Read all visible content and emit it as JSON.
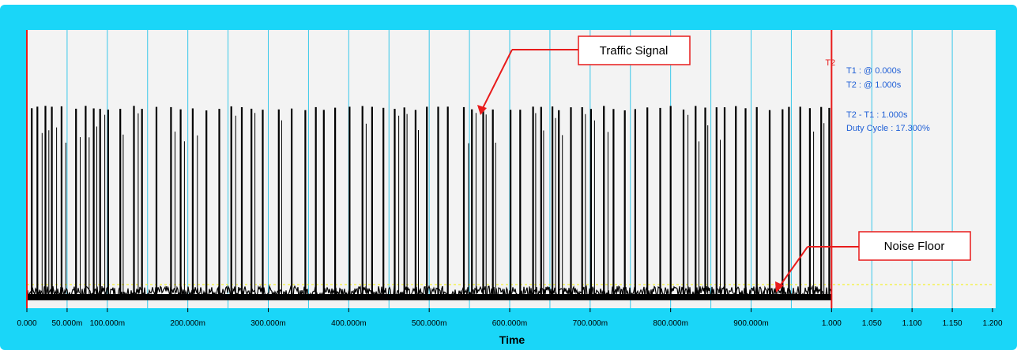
{
  "chart_data": {
    "type": "line",
    "xlabel": "Time",
    "ylabel": "",
    "x_unit": "s",
    "xlim": [
      0,
      1.2
    ],
    "x_ticks": [
      {
        "value": 0.0,
        "label": "0.000"
      },
      {
        "value": 0.05,
        "label": "50.000m"
      },
      {
        "value": 0.1,
        "label": "100.000m"
      },
      {
        "value": 0.2,
        "label": "200.000m"
      },
      {
        "value": 0.3,
        "label": "300.000m"
      },
      {
        "value": 0.4,
        "label": "400.000m"
      },
      {
        "value": 0.5,
        "label": "500.000m"
      },
      {
        "value": 0.6,
        "label": "600.000m"
      },
      {
        "value": 0.7,
        "label": "700.000m"
      },
      {
        "value": 0.8,
        "label": "800.000m"
      },
      {
        "value": 0.9,
        "label": "900.000m"
      },
      {
        "value": 1.0,
        "label": "1.000"
      },
      {
        "value": 1.05,
        "label": "1.050"
      },
      {
        "value": 1.1,
        "label": "1.100"
      },
      {
        "value": 1.15,
        "label": "1.150"
      },
      {
        "value": 1.2,
        "label": "1.200"
      }
    ],
    "gridlines_x": [
      0.05,
      0.1,
      0.15,
      0.2,
      0.25,
      0.3,
      0.35,
      0.4,
      0.45,
      0.5,
      0.55,
      0.6,
      0.65,
      0.7,
      0.75,
      0.8,
      0.85,
      0.9,
      0.95,
      1.0,
      1.05,
      1.1,
      1.15
    ],
    "signal": {
      "high_level": 0.92,
      "low_level": 0.05,
      "duty_cycle_percent": 17.3,
      "burst_starts": [
        0.005,
        0.012,
        0.022,
        0.03,
        0.042,
        0.06,
        0.072,
        0.082,
        0.09,
        0.1,
        0.115,
        0.132,
        0.142,
        0.16,
        0.178,
        0.19,
        0.205,
        0.222,
        0.238,
        0.253,
        0.266,
        0.278,
        0.292,
        0.312,
        0.328,
        0.345,
        0.358,
        0.368,
        0.382,
        0.4,
        0.416,
        0.428,
        0.442,
        0.456,
        0.468,
        0.482,
        0.496,
        0.51,
        0.522,
        0.542,
        0.552,
        0.566,
        0.578,
        0.6,
        0.612,
        0.628,
        0.638,
        0.652,
        0.66,
        0.675,
        0.689,
        0.7,
        0.716,
        0.728,
        0.742,
        0.755,
        0.77,
        0.786,
        0.799,
        0.815,
        0.83,
        0.842,
        0.856,
        0.866,
        0.88,
        0.892,
        0.906,
        0.922,
        0.938,
        0.946,
        0.96,
        0.972,
        0.986,
        0.996
      ],
      "burst_width": 0.0022
    },
    "noise_floor_level": 0.1,
    "cursors": [
      {
        "name": "T1",
        "x": 0.0
      },
      {
        "name": "T2",
        "x": 1.0
      }
    ],
    "colors": {
      "frame": "#1ad6f8",
      "plot_background": "#f3f3f3",
      "gridline": "#39c8ea",
      "signal": "#000000",
      "cursor": "#e81b1b",
      "noise_floor_line": "#f4f000",
      "readout": "#1f5fd6"
    },
    "readouts": [
      "T1 : @ 0.000s",
      "T2 : @ 1.000s",
      "T2 - T1 : 1.000s",
      "Duty Cycle : 17.300%"
    ],
    "annotations": [
      {
        "text": "Traffic Signal",
        "target_x": 0.565,
        "target_level": 0.9
      },
      {
        "text": "Noise Floor",
        "target_x": 0.925,
        "target_level": 0.05
      }
    ]
  }
}
